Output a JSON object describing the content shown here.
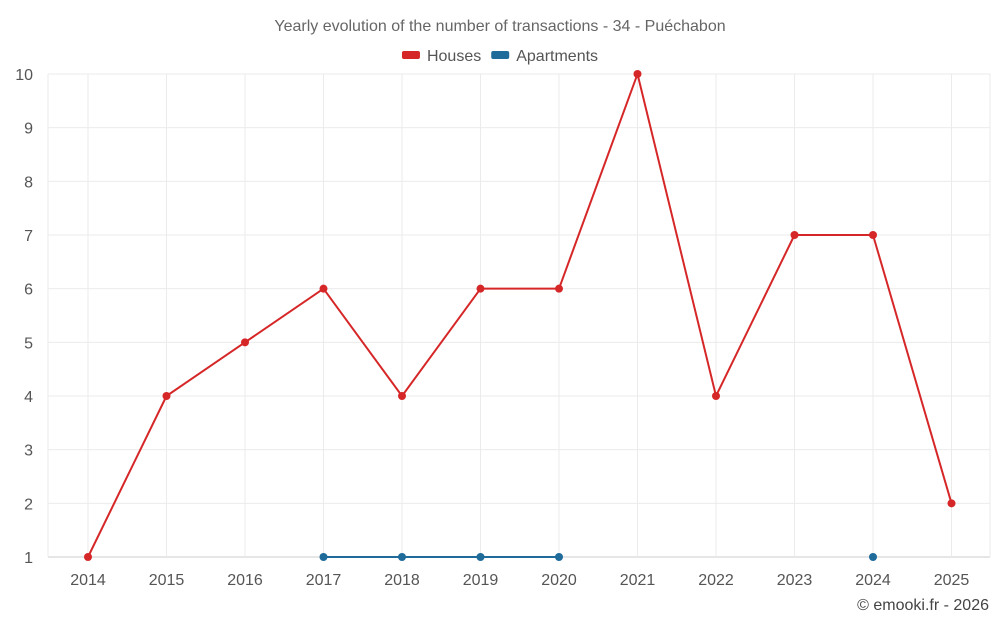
{
  "chart_data": {
    "type": "line",
    "title": "Yearly evolution of the number of transactions - 34 - Puéchabon",
    "x": [
      2014,
      2015,
      2016,
      2017,
      2018,
      2019,
      2020,
      2021,
      2022,
      2023,
      2024,
      2025
    ],
    "ylim": [
      1,
      10
    ],
    "yticks": [
      1,
      2,
      3,
      4,
      5,
      6,
      7,
      8,
      9,
      10
    ],
    "grid": true,
    "legend_position": "top",
    "series": [
      {
        "name": "Houses",
        "color": "#d62728",
        "values": [
          1,
          4,
          5,
          6,
          4,
          6,
          6,
          10,
          4,
          7,
          7,
          2
        ]
      },
      {
        "name": "Apartments",
        "color": "#1f6b9a",
        "values": [
          null,
          null,
          null,
          1,
          1,
          1,
          1,
          null,
          null,
          null,
          1,
          null
        ]
      }
    ]
  },
  "credit": "© emooki.fr - 2026"
}
